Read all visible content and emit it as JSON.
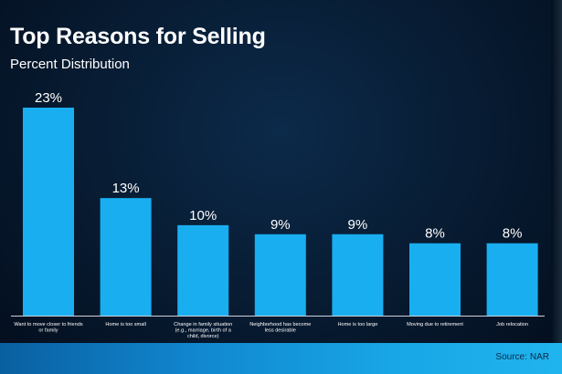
{
  "chart_data": {
    "type": "bar",
    "title": "Top Reasons for Selling",
    "subtitle": "Percent Distribution",
    "categories": [
      [
        "Want to move closer to friends",
        "or family"
      ],
      [
        "Home is too small"
      ],
      [
        "Change in family situation",
        "(e.g., marriage, birth of a",
        "child, divorce)"
      ],
      [
        "Neighborhood has become",
        "less desirable"
      ],
      [
        "Home is too large"
      ],
      [
        "Moving due to retirement"
      ],
      [
        "Job relocation"
      ]
    ],
    "values": [
      23,
      13,
      10,
      9,
      9,
      8,
      8
    ],
    "value_labels": [
      "23%",
      "13%",
      "10%",
      "9%",
      "9%",
      "8%",
      "8%"
    ],
    "unit": "%",
    "ylim": [
      0,
      23
    ],
    "xlabel": "",
    "ylabel": "",
    "grid": false,
    "legend": "none",
    "source_label": "Source:",
    "source_value": "NAR"
  },
  "colors": {
    "bar": "#19aef0",
    "text": "#ffffff",
    "axis": "#c9d4de"
  }
}
